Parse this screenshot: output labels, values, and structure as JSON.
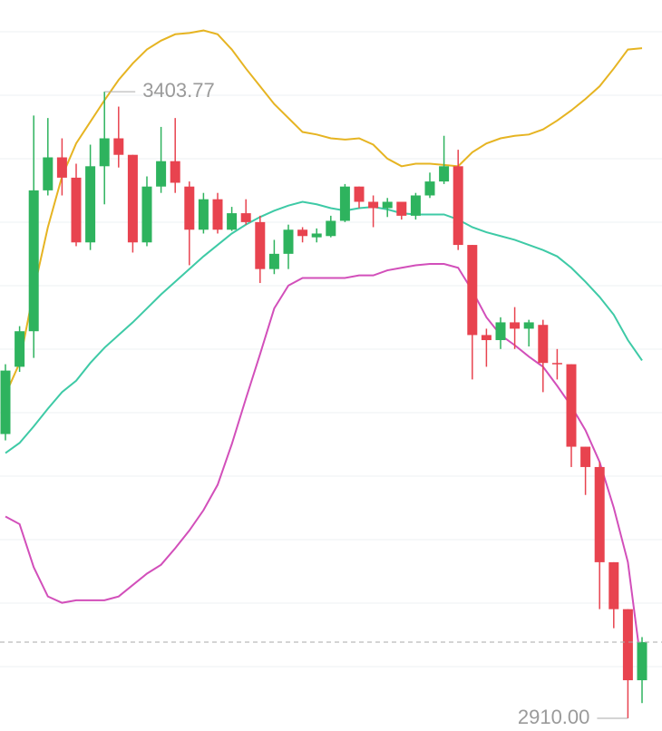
{
  "chart_data": {
    "type": "candlestick",
    "ylim": [
      2900,
      3476
    ],
    "up_color": "#2eb35e",
    "down_color": "#e8434f",
    "open": [
      3134,
      3187,
      3215,
      3326,
      3352,
      3336,
      3285,
      3345,
      3367,
      3354,
      3285,
      3329,
      3349,
      3329,
      3295,
      3319,
      3295,
      3308,
      3301,
      3264,
      3276,
      3295,
      3289,
      3290,
      3302,
      3329,
      3317,
      3312,
      3317,
      3306,
      3322,
      3333,
      3345,
      3283,
      3212,
      3208,
      3222,
      3217,
      3220,
      3190,
      3189,
      3124,
      3108,
      3033,
      2996,
      2940
    ],
    "high": [
      3189,
      3219,
      3385,
      3383,
      3367,
      3347,
      3362,
      3403.77,
      3392,
      3354,
      3337,
      3376,
      3383,
      3333,
      3324,
      3324,
      3313,
      3319,
      3306,
      3287,
      3299,
      3297,
      3296,
      3306,
      3331,
      3329,
      3322,
      3320,
      3317,
      3324,
      3340,
      3369,
      3358,
      3283,
      3217,
      3226,
      3234,
      3224,
      3224,
      3201,
      3189,
      3124,
      3112,
      3033,
      2996,
      2974
    ],
    "low": [
      3129,
      3183,
      3194,
      3322,
      3322,
      3282,
      3279,
      3315,
      3344,
      3277,
      3282,
      3324,
      3324,
      3267,
      3292,
      3292,
      3294,
      3299,
      3253,
      3260,
      3264,
      3285,
      3285,
      3289,
      3301,
      3312,
      3297,
      3305,
      3303,
      3303,
      3320,
      3331,
      3279,
      3177,
      3187,
      3201,
      3201,
      3203,
      3167,
      3177,
      3108,
      3086,
      2996,
      2981,
      2910,
      2922
    ],
    "close": [
      3184,
      3215,
      3326,
      3352,
      3336,
      3285,
      3345,
      3367,
      3354,
      3285,
      3329,
      3349,
      3332,
      3295,
      3319,
      3295,
      3308,
      3301,
      3264,
      3276,
      3295,
      3290,
      3292,
      3302,
      3329,
      3317,
      3312,
      3317,
      3306,
      3322,
      3333,
      3345,
      3283,
      3212,
      3208,
      3222,
      3217,
      3222,
      3190,
      3189,
      3124,
      3108,
      3033,
      2996,
      2940,
      2970
    ],
    "bands": [
      {
        "color": "#e6b422",
        "values": [
          3165,
          3190,
          3247,
          3297,
          3337,
          3363,
          3380,
          3397,
          3413,
          3426,
          3437,
          3444,
          3449,
          3450,
          3452,
          3449,
          3437,
          3422,
          3408,
          3394,
          3383,
          3372,
          3370,
          3367,
          3366,
          3367,
          3362,
          3351,
          3345,
          3347,
          3347,
          3346,
          3345,
          3356,
          3363,
          3367,
          3369,
          3370,
          3374,
          3381,
          3389,
          3398,
          3408,
          3422,
          3437,
          3438
        ]
      },
      {
        "color": "#3ecaa6",
        "values": [
          3119,
          3127,
          3140,
          3154,
          3167,
          3176,
          3190,
          3202,
          3212,
          3222,
          3233,
          3244,
          3254,
          3264,
          3274,
          3283,
          3292,
          3299,
          3305,
          3310,
          3314,
          3317,
          3315,
          3312,
          3310,
          3312,
          3313,
          3311,
          3308,
          3307,
          3307,
          3307,
          3303,
          3297,
          3293,
          3290,
          3287,
          3283,
          3279,
          3274,
          3265,
          3254,
          3242,
          3228,
          3208,
          3192
        ]
      },
      {
        "color": "#d24fba",
        "values": [
          3069,
          3063,
          3029,
          3006,
          3001,
          3003,
          3003,
          3003,
          3006,
          3015,
          3024,
          3031,
          3044,
          3058,
          3074,
          3094,
          3126,
          3162,
          3197,
          3233,
          3251,
          3257,
          3257,
          3257,
          3257,
          3259,
          3259,
          3263,
          3265,
          3267,
          3268,
          3268,
          3265,
          3247,
          3226,
          3212,
          3204,
          3195,
          3187,
          3172,
          3156,
          3137,
          3112,
          3076,
          3033,
          2947
        ]
      }
    ],
    "annotations": [
      {
        "value": 3403.77,
        "label": "3403.77"
      },
      {
        "value": 2910,
        "label": "2910.00"
      }
    ]
  }
}
